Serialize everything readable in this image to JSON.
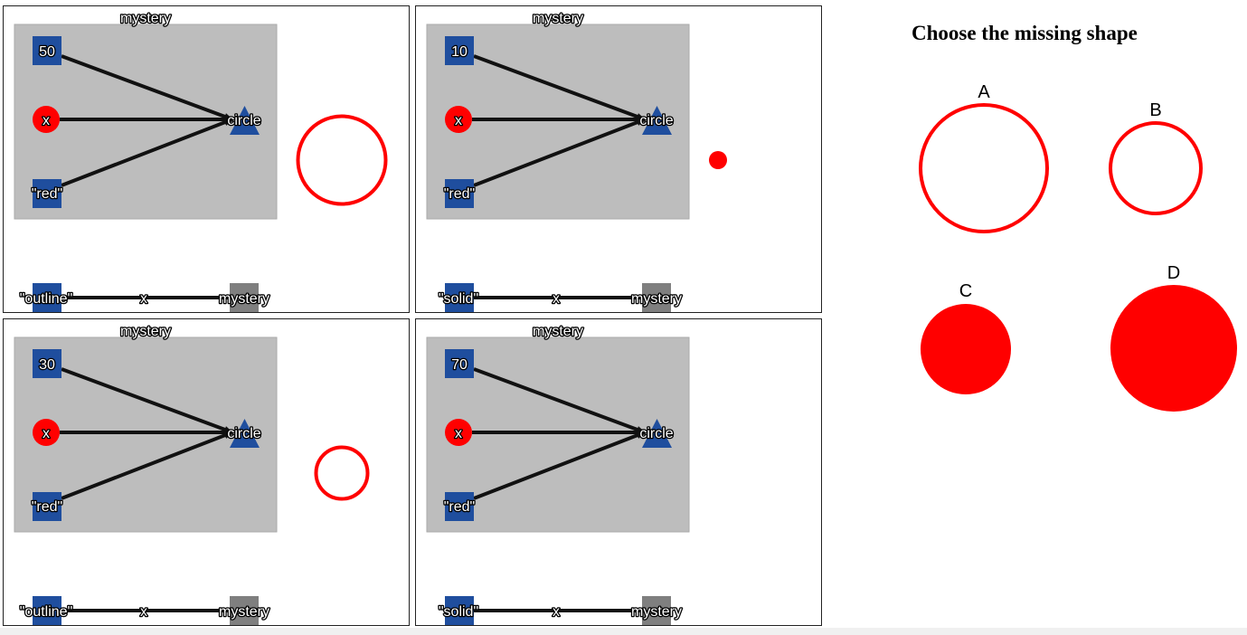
{
  "colors": {
    "panel_bg": "#bdbdbd",
    "node_blue": "#1f4e9e",
    "node_red": "#ff0000",
    "mystery_gray": "#7f7f7f",
    "edge": "#111111",
    "shape_red": "#ff0000"
  },
  "panels": [
    {
      "title": "mystery",
      "number_label": "50",
      "param_label": "x",
      "color_label": "\"red\"",
      "function_label": "circle",
      "bottom": {
        "mode_label": "\"outline\"",
        "arg_label": "x",
        "result_label": "mystery"
      },
      "example": {
        "style": "outline",
        "radius": 50
      }
    },
    {
      "title": "mystery",
      "number_label": "10",
      "param_label": "x",
      "color_label": "\"red\"",
      "function_label": "circle",
      "bottom": {
        "mode_label": "\"solid\"",
        "arg_label": "x",
        "result_label": "mystery"
      },
      "example": {
        "style": "solid",
        "radius": 10
      }
    },
    {
      "title": "mystery",
      "number_label": "30",
      "param_label": "x",
      "color_label": "\"red\"",
      "function_label": "circle",
      "bottom": {
        "mode_label": "\"outline\"",
        "arg_label": "x",
        "result_label": "mystery"
      },
      "example": {
        "style": "outline",
        "radius": 30
      }
    },
    {
      "title": "mystery",
      "number_label": "70",
      "param_label": "x",
      "color_label": "\"red\"",
      "function_label": "circle",
      "bottom": {
        "mode_label": "\"solid\"",
        "arg_label": "x",
        "result_label": "mystery"
      },
      "example": null
    }
  ],
  "question": "Choose the missing shape",
  "choices": [
    {
      "label": "A",
      "style": "outline",
      "radius": 70
    },
    {
      "label": "B",
      "style": "outline",
      "radius": 50
    },
    {
      "label": "C",
      "style": "solid",
      "radius": 50
    },
    {
      "label": "D",
      "style": "solid",
      "radius": 70
    }
  ]
}
